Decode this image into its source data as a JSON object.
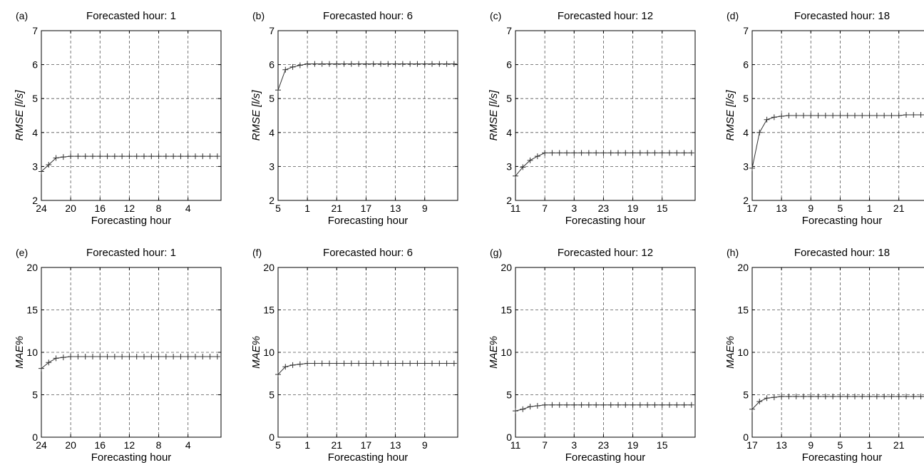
{
  "panels": [
    {
      "label": "(a)",
      "title": "Forecasted hour: 1",
      "xlabel": "Forecasting hour",
      "ylabel": "RMSE [l/s]",
      "x_ticks": [
        "24",
        "20",
        "16",
        "12",
        "8",
        "4"
      ],
      "y_ticks": [
        "2",
        "3",
        "4",
        "5",
        "6",
        "7"
      ]
    },
    {
      "label": "(b)",
      "title": "Forecasted hour: 6",
      "xlabel": "Forecasting hour",
      "ylabel": "RMSE [l/s]",
      "x_ticks": [
        "5",
        "1",
        "21",
        "17",
        "13",
        "9"
      ],
      "y_ticks": [
        "2",
        "3",
        "4",
        "5",
        "6",
        "7"
      ]
    },
    {
      "label": "(c)",
      "title": "Forecasted hour: 12",
      "xlabel": "Forecasting hour",
      "ylabel": "RMSE [l/s]",
      "x_ticks": [
        "11",
        "7",
        "3",
        "23",
        "19",
        "15"
      ],
      "y_ticks": [
        "2",
        "3",
        "4",
        "5",
        "6",
        "7"
      ]
    },
    {
      "label": "(d)",
      "title": "Forecasted hour: 18",
      "xlabel": "Forecasting hour",
      "ylabel": "RMSE [l/s]",
      "x_ticks": [
        "17",
        "13",
        "9",
        "5",
        "1",
        "21"
      ],
      "y_ticks": [
        "2",
        "3",
        "4",
        "5",
        "6",
        "7"
      ]
    },
    {
      "label": "(e)",
      "title": "Forecasted hour: 1",
      "xlabel": "Forecasting hour",
      "ylabel": "MAE%",
      "x_ticks": [
        "24",
        "20",
        "16",
        "12",
        "8",
        "4"
      ],
      "y_ticks": [
        "0",
        "5",
        "10",
        "15",
        "20"
      ]
    },
    {
      "label": "(f)",
      "title": "Forecasted hour: 6",
      "xlabel": "Forecasting hour",
      "ylabel": "MAE%",
      "x_ticks": [
        "5",
        "1",
        "21",
        "17",
        "13",
        "9"
      ],
      "y_ticks": [
        "0",
        "5",
        "10",
        "15",
        "20"
      ]
    },
    {
      "label": "(g)",
      "title": "Forecasted hour: 12",
      "xlabel": "Forecasting hour",
      "ylabel": "MAE%",
      "x_ticks": [
        "11",
        "7",
        "3",
        "23",
        "19",
        "15"
      ],
      "y_ticks": [
        "0",
        "5",
        "10",
        "15",
        "20"
      ]
    },
    {
      "label": "(h)",
      "title": "Forecasted hour: 18",
      "xlabel": "Forecasting hour",
      "ylabel": "MAE%",
      "x_ticks": [
        "17",
        "13",
        "9",
        "5",
        "1",
        "21"
      ],
      "y_ticks": [
        "0",
        "5",
        "10",
        "15",
        "20"
      ]
    }
  ],
  "chart_data": [
    {
      "type": "line",
      "panel": "(a)",
      "title": "Forecasted hour: 1",
      "xlabel": "Forecasting hour",
      "ylabel": "RMSE [l/s]",
      "x_steps": [
        0,
        1,
        2,
        3,
        4,
        5,
        6,
        7,
        8,
        9,
        10,
        11,
        12,
        13,
        14,
        15,
        16,
        17,
        18,
        19,
        20,
        21,
        22,
        23,
        24
      ],
      "x_tick_steps": [
        0,
        4,
        8,
        12,
        16,
        20
      ],
      "xlim": [
        0,
        24.5
      ],
      "ylim": [
        2,
        7
      ],
      "grid": true,
      "y": [
        2.85,
        3.05,
        3.25,
        3.28,
        3.3,
        3.3,
        3.3,
        3.3,
        3.3,
        3.3,
        3.3,
        3.3,
        3.3,
        3.3,
        3.3,
        3.3,
        3.3,
        3.3,
        3.3,
        3.3,
        3.3,
        3.3,
        3.3,
        3.3,
        3.3
      ]
    },
    {
      "type": "line",
      "panel": "(b)",
      "title": "Forecasted hour: 6",
      "xlabel": "Forecasting hour",
      "ylabel": "RMSE [l/s]",
      "x_steps": [
        0,
        1,
        2,
        3,
        4,
        5,
        6,
        7,
        8,
        9,
        10,
        11,
        12,
        13,
        14,
        15,
        16,
        17,
        18,
        19,
        20,
        21,
        22,
        23,
        24
      ],
      "x_tick_steps": [
        0,
        4,
        8,
        12,
        16,
        20
      ],
      "xlim": [
        0,
        24.5
      ],
      "ylim": [
        2,
        7
      ],
      "grid": true,
      "y": [
        5.25,
        5.85,
        5.93,
        5.98,
        6.02,
        6.02,
        6.02,
        6.02,
        6.02,
        6.02,
        6.02,
        6.02,
        6.02,
        6.02,
        6.02,
        6.02,
        6.02,
        6.02,
        6.02,
        6.02,
        6.02,
        6.02,
        6.02,
        6.02,
        6.02
      ]
    },
    {
      "type": "line",
      "panel": "(c)",
      "title": "Forecasted hour: 12",
      "xlabel": "Forecasting hour",
      "ylabel": "RMSE [l/s]",
      "x_steps": [
        0,
        1,
        2,
        3,
        4,
        5,
        6,
        7,
        8,
        9,
        10,
        11,
        12,
        13,
        14,
        15,
        16,
        17,
        18,
        19,
        20,
        21,
        22,
        23,
        24
      ],
      "x_tick_steps": [
        0,
        4,
        8,
        12,
        16,
        20
      ],
      "xlim": [
        0,
        24.5
      ],
      "ylim": [
        2,
        7
      ],
      "grid": true,
      "y": [
        2.72,
        2.98,
        3.18,
        3.3,
        3.4,
        3.4,
        3.4,
        3.4,
        3.4,
        3.4,
        3.4,
        3.4,
        3.4,
        3.4,
        3.4,
        3.4,
        3.4,
        3.4,
        3.4,
        3.4,
        3.4,
        3.4,
        3.4,
        3.4,
        3.4
      ]
    },
    {
      "type": "line",
      "panel": "(d)",
      "title": "Forecasted hour: 18",
      "xlabel": "Forecasting hour",
      "ylabel": "RMSE [l/s]",
      "x_steps": [
        0,
        1,
        2,
        3,
        4,
        5,
        6,
        7,
        8,
        9,
        10,
        11,
        12,
        13,
        14,
        15,
        16,
        17,
        18,
        19,
        20,
        21,
        22,
        23,
        24
      ],
      "x_tick_steps": [
        0,
        4,
        8,
        12,
        16,
        20
      ],
      "xlim": [
        0,
        24.5
      ],
      "ylim": [
        2,
        7
      ],
      "grid": true,
      "y": [
        2.95,
        4.0,
        4.38,
        4.45,
        4.48,
        4.5,
        4.5,
        4.5,
        4.5,
        4.5,
        4.5,
        4.5,
        4.5,
        4.5,
        4.5,
        4.5,
        4.5,
        4.5,
        4.5,
        4.5,
        4.5,
        4.52,
        4.52,
        4.52,
        4.52
      ]
    },
    {
      "type": "line",
      "panel": "(e)",
      "title": "Forecasted hour: 1",
      "xlabel": "Forecasting hour",
      "ylabel": "MAE%",
      "x_steps": [
        0,
        1,
        2,
        3,
        4,
        5,
        6,
        7,
        8,
        9,
        10,
        11,
        12,
        13,
        14,
        15,
        16,
        17,
        18,
        19,
        20,
        21,
        22,
        23,
        24
      ],
      "x_tick_steps": [
        0,
        4,
        8,
        12,
        16,
        20
      ],
      "xlim": [
        0,
        24.5
      ],
      "ylim": [
        0,
        20
      ],
      "grid": true,
      "y": [
        8.1,
        8.8,
        9.3,
        9.4,
        9.5,
        9.5,
        9.5,
        9.5,
        9.5,
        9.5,
        9.5,
        9.5,
        9.5,
        9.5,
        9.5,
        9.5,
        9.5,
        9.5,
        9.5,
        9.5,
        9.5,
        9.5,
        9.5,
        9.5,
        9.5
      ]
    },
    {
      "type": "line",
      "panel": "(f)",
      "title": "Forecasted hour: 6",
      "xlabel": "Forecasting hour",
      "ylabel": "MAE%",
      "x_steps": [
        0,
        1,
        2,
        3,
        4,
        5,
        6,
        7,
        8,
        9,
        10,
        11,
        12,
        13,
        14,
        15,
        16,
        17,
        18,
        19,
        20,
        21,
        22,
        23,
        24
      ],
      "x_tick_steps": [
        0,
        4,
        8,
        12,
        16,
        20
      ],
      "xlim": [
        0,
        24.5
      ],
      "ylim": [
        0,
        20
      ],
      "grid": true,
      "y": [
        7.4,
        8.3,
        8.5,
        8.6,
        8.7,
        8.7,
        8.7,
        8.7,
        8.7,
        8.7,
        8.7,
        8.7,
        8.7,
        8.7,
        8.7,
        8.7,
        8.7,
        8.7,
        8.7,
        8.7,
        8.7,
        8.7,
        8.7,
        8.7,
        8.7
      ]
    },
    {
      "type": "line",
      "panel": "(g)",
      "title": "Forecasted hour: 12",
      "xlabel": "Forecasting hour",
      "ylabel": "MAE%",
      "x_steps": [
        0,
        1,
        2,
        3,
        4,
        5,
        6,
        7,
        8,
        9,
        10,
        11,
        12,
        13,
        14,
        15,
        16,
        17,
        18,
        19,
        20,
        21,
        22,
        23,
        24
      ],
      "x_tick_steps": [
        0,
        4,
        8,
        12,
        16,
        20
      ],
      "xlim": [
        0,
        24.5
      ],
      "ylim": [
        0,
        20
      ],
      "grid": true,
      "y": [
        3.1,
        3.3,
        3.6,
        3.7,
        3.8,
        3.8,
        3.8,
        3.8,
        3.8,
        3.8,
        3.8,
        3.8,
        3.8,
        3.8,
        3.8,
        3.8,
        3.8,
        3.8,
        3.8,
        3.8,
        3.8,
        3.8,
        3.8,
        3.8,
        3.8
      ]
    },
    {
      "type": "line",
      "panel": "(h)",
      "title": "Forecasted hour: 18",
      "xlabel": "Forecasting hour",
      "ylabel": "MAE%",
      "x_steps": [
        0,
        1,
        2,
        3,
        4,
        5,
        6,
        7,
        8,
        9,
        10,
        11,
        12,
        13,
        14,
        15,
        16,
        17,
        18,
        19,
        20,
        21,
        22,
        23,
        24
      ],
      "x_tick_steps": [
        0,
        4,
        8,
        12,
        16,
        20
      ],
      "xlim": [
        0,
        24.5
      ],
      "ylim": [
        0,
        20
      ],
      "grid": true,
      "y": [
        3.3,
        4.2,
        4.6,
        4.7,
        4.8,
        4.8,
        4.8,
        4.8,
        4.8,
        4.8,
        4.8,
        4.8,
        4.8,
        4.8,
        4.8,
        4.8,
        4.8,
        4.8,
        4.8,
        4.8,
        4.8,
        4.8,
        4.8,
        4.8,
        4.8
      ]
    }
  ]
}
